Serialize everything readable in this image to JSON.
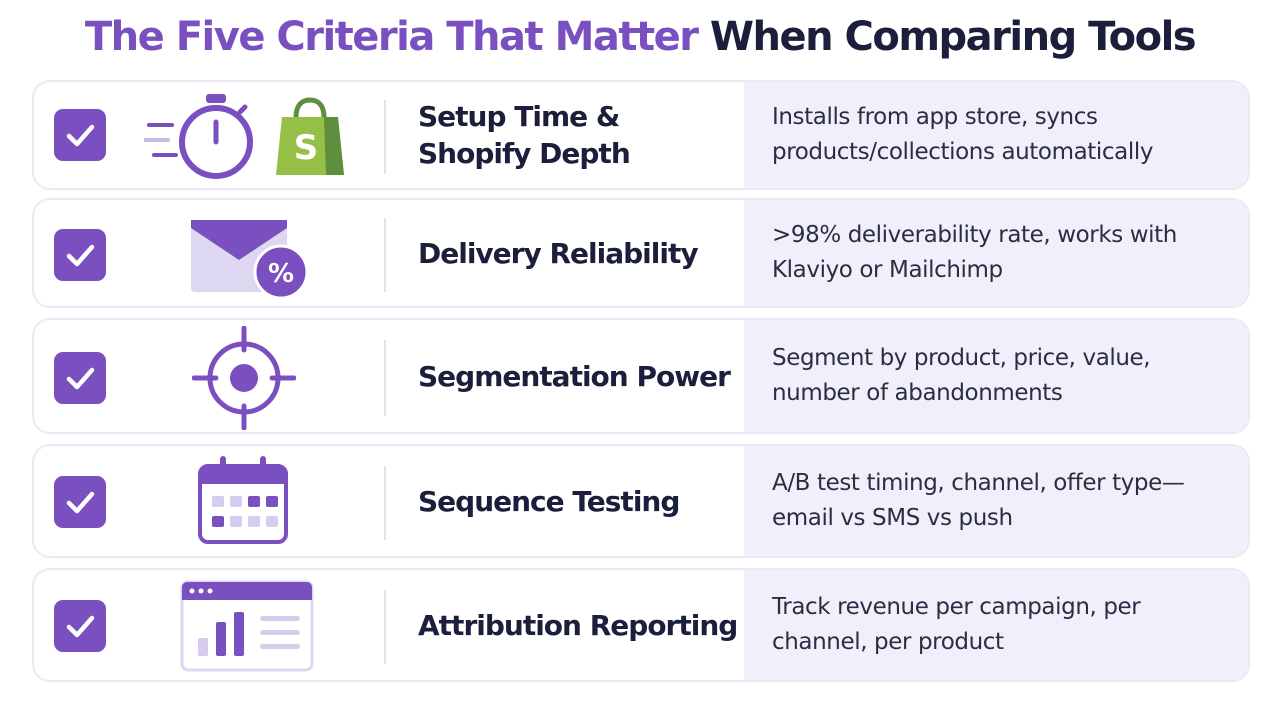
{
  "title": {
    "accent": "The Five Criteria That Matter",
    "rest": " When Comparing Tools"
  },
  "colors": {
    "accent": "#7a4fbf",
    "text": "#1b1f3b",
    "desc_bg": "#f1eff9"
  },
  "criteria": [
    {
      "label": "Setup Time & Shopify Depth",
      "description": "Installs from app store, syncs products/collections automatically",
      "icon": "stopwatch-icon",
      "checked": true
    },
    {
      "label": "Delivery Reliability",
      "description": ">98% deliverability rate, works with Klaviyo or Mailchimp",
      "icon": "envelope-percent-icon",
      "checked": true
    },
    {
      "label": "Segmentation Power",
      "description": "Segment by product, price, value, number of abandonments",
      "icon": "target-icon",
      "checked": true
    },
    {
      "label": "Sequence Testing",
      "description": "A/B test timing, channel, offer type—email vs SMS vs push",
      "icon": "calendar-icon",
      "checked": true
    },
    {
      "label": "Attribution Reporting",
      "description": "Track revenue per campaign, per channel, per product",
      "icon": "report-chart-icon",
      "checked": true
    }
  ]
}
